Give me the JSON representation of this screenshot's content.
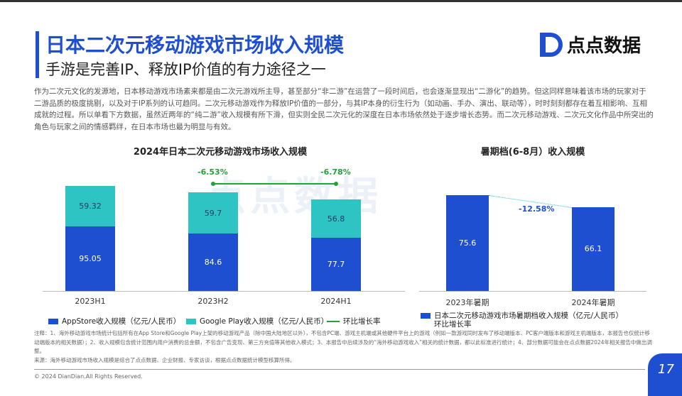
{
  "header": {
    "title": "日本二次元移动游戏市场收入规模",
    "subtitle": "手游是完善IP、释放IP价值的有力途径之一",
    "logo_text": "点点数据"
  },
  "intro": "作为二次元文化的发源地，日本移动游戏市场素来都是由二次元游戏所主导，甚至部分“非二游”在运营了一段时间后，也会逐渐显现出“二游化”的趋势。但这同样意味着该市场的玩家对于二游品质的极度挑剔，以及对于IP系列的认可趋同。二次元移动游戏作为释放IP价值的一部分，与其IP本身的衍生行为（如动画、手办、演出、联动等），时时刻刻都存在着互相影响、互相成就的过程。所以单看下方数据，虽然近两年的“纯二游”收入规模有所下滑，但实则全民二次元化的深度在日本市场依然处于逐步增长态势。而二次元移动游戏、二次元文化作品中所突出的角色与玩家之间的情感羁绊，在日本市场也最为明显与有效。",
  "watermark": "点点数据",
  "chart_data": [
    {
      "type": "bar",
      "stacked": true,
      "title": "2024年日本二次元移动游戏市场收入规模",
      "categories": [
        "2023H1",
        "2023H2",
        "2024H1"
      ],
      "series": [
        {
          "name": "AppStore收入规模（亿元/人民币）",
          "color": "#1f4fd1",
          "values": [
            95.05,
            84.6,
            77.7
          ]
        },
        {
          "name": "Google Play收入规模（亿元/人民币）",
          "color": "#2ec4c4",
          "values": [
            59.32,
            59.7,
            56.8
          ]
        }
      ],
      "line": {
        "name": "环比增长率",
        "color": "#22a33a",
        "values": [
          "-6.53%",
          "-6.78%"
        ]
      }
    },
    {
      "type": "bar",
      "title": "暑期档(6-8月）收入规模",
      "categories": [
        "2023年暑期",
        "2024年暑期"
      ],
      "series": [
        {
          "name": "日本二次元移动游戏市场暑期档收入规模（亿元/人民币）",
          "color": "#1f4fd1",
          "values": [
            75.6,
            66.1
          ]
        }
      ],
      "growth": {
        "name": "环比增长率",
        "value": "-12.58%"
      }
    }
  ],
  "notes": [
    "注释：1、海外移动游戏市场统计包括所有在App Store和Google Play上架的移动游戏产品（除中国大陆地区以外），不包含PC端、游戏主机端或其他硬件平台上的游戏（例如一款游戏同时发布了移动端版本、PC客户端版本和游戏主机端版本，本报告也仅统计移动端版本的相关数据）；2、收入规模包含统计范围内用户消费的总金额，不包含广告变现、第三方充值等其他收入模式；3、本报告中后续涉及的“海外移动游戏收入”相关的统计数据，都以此标准进行统计；4、部分数据可能会在点点数据2024年相关报告中做出调整。",
    "来源：海外移动游戏市场收入规模是综合了点点数据、企业财报、专家访谈，根据点点数据统计模型核算所得。"
  ],
  "footer": {
    "copyright": "© 2024 DianDian.All Rights Reserved.",
    "page": "17"
  }
}
